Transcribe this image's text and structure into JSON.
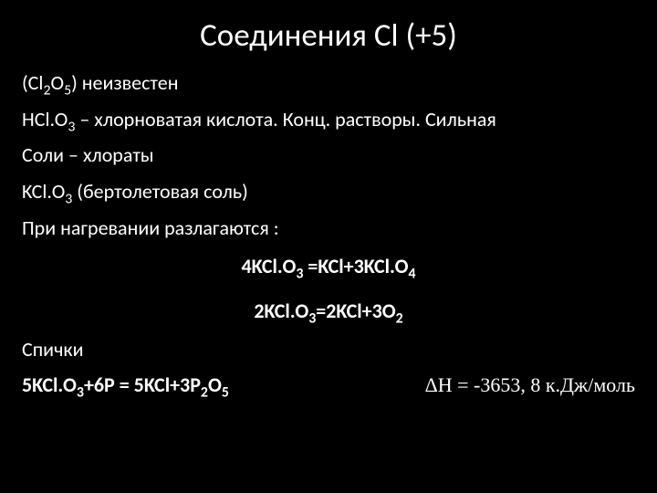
{
  "title": "Соединения Cl (+5)",
  "lines": {
    "l1a": "(Cl",
    "l1b": "O",
    "l1c": ")  неизвестен",
    "l2a": "HCl.O",
    "l2b": " – хлорноватая кислота. Конц. растворы. Сильная",
    "l3": "Соли – хлораты",
    "l4a": "KCl.O",
    "l4b": " (бертолетовая соль)",
    "l5": "При нагревании разлагаются :",
    "eq1a": "4KCl.O",
    "eq1b": " =KCl+3KCl.O",
    "eq2a": "2KCl.O",
    "eq2b": "=2KCl+3O",
    "l6": "Спички",
    "eq3a": "5KCl.O",
    "eq3b": "+6P =  5KCl+3P",
    "eq3c": "O",
    "dh": "ΔH = -3653, 8 к.Дж/моль"
  },
  "sub": {
    "two": "2",
    "three": "3",
    "four": "4",
    "five": "5"
  }
}
